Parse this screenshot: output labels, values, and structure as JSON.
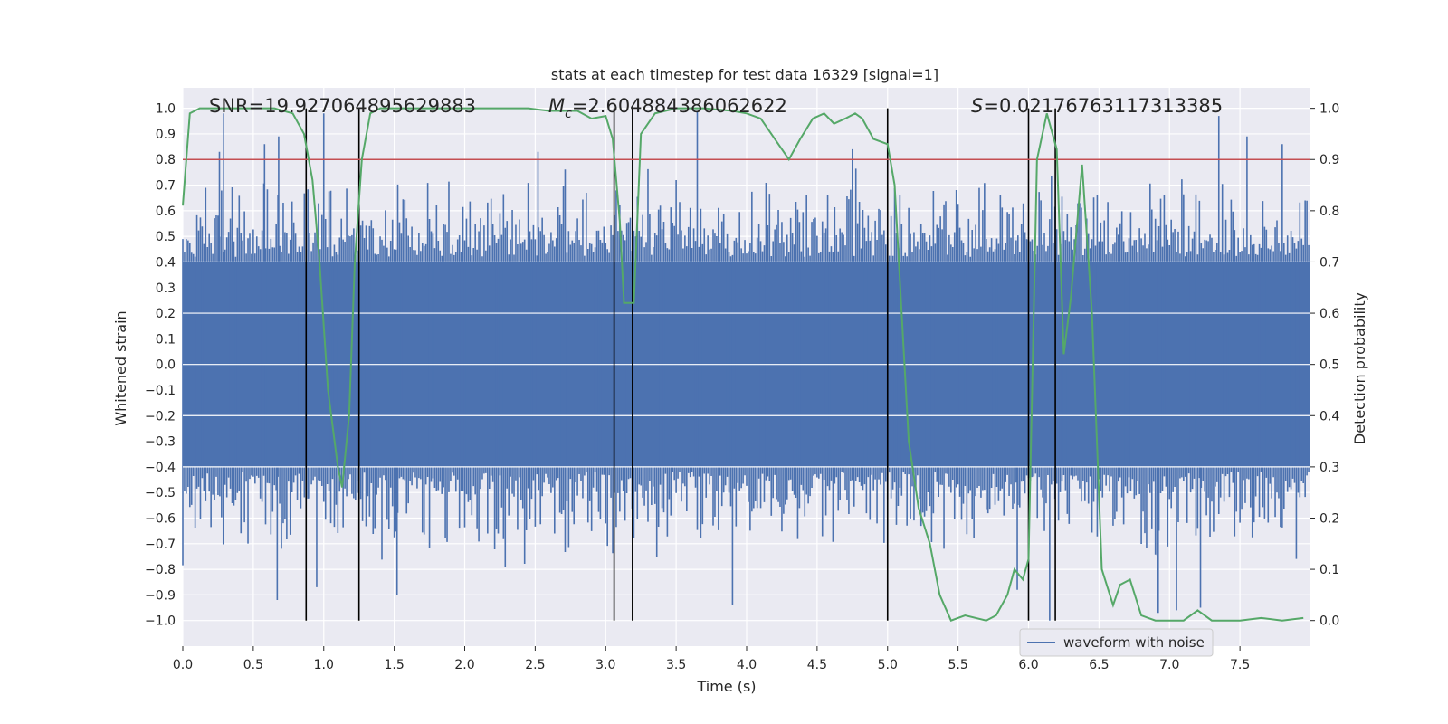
{
  "chart_data": {
    "type": "line",
    "title": "stats at each timestep for test data 16329 [signal=1]",
    "xlabel": "Time (s)",
    "ylabel_left": "Whitened strain",
    "ylabel_right": "Detection probability",
    "xlim": [
      0,
      8
    ],
    "ylim_left": [
      -1.1,
      1.08
    ],
    "ylim_right": [
      -0.05,
      1.04
    ],
    "x_ticks": [
      "0.0",
      "0.5",
      "1.0",
      "1.5",
      "2.0",
      "2.5",
      "3.0",
      "3.5",
      "4.0",
      "4.5",
      "5.0",
      "5.5",
      "6.0",
      "6.5",
      "7.0",
      "7.5"
    ],
    "y_left_ticks": [
      "1.0",
      "0.9",
      "0.8",
      "0.7",
      "0.6",
      "0.5",
      "0.4",
      "0.3",
      "0.2",
      "0.1",
      "0.0",
      "−0.1",
      "−0.2",
      "−0.3",
      "−0.4",
      "−0.5",
      "−0.6",
      "−0.7",
      "−0.8",
      "−0.9",
      "−1.0"
    ],
    "y_right_ticks": [
      "1.0",
      "0.9",
      "0.8",
      "0.7",
      "0.6",
      "0.5",
      "0.4",
      "0.3",
      "0.2",
      "0.1",
      "0.0"
    ],
    "annotations": {
      "snr": "SNR=19.927064895629883",
      "mc_symbol": "M",
      "mc_sub": "c",
      "mc_value": "=2.604884386062622",
      "s_symbol": "S",
      "s_value": "=0.021767631173133​85"
    },
    "legend": [
      {
        "label": "waveform with noise",
        "color": "#4c72b0"
      }
    ],
    "legend_position": "lower-right",
    "grid": true,
    "background": "#eaeaf2",
    "threshold_line": {
      "axis": "right",
      "y": 0.9,
      "color": "#c44e52"
    },
    "vertical_lines_x": [
      0.875,
      1.25,
      3.06,
      3.19,
      5.0,
      6.0,
      6.19
    ],
    "waveform": {
      "name": "waveform with noise",
      "color": "#4c72b0",
      "samples_per_second": 80,
      "core_amplitude": 0.42,
      "extreme_spikes": [
        {
          "x": 0.26,
          "y": 0.83
        },
        {
          "x": 0.29,
          "y": 0.98
        },
        {
          "x": 0.58,
          "y": 0.86
        },
        {
          "x": 0.68,
          "y": 0.89
        },
        {
          "x": 0.67,
          "y": -0.92
        },
        {
          "x": 0.95,
          "y": -0.87
        },
        {
          "x": 1.52,
          "y": -0.9
        },
        {
          "x": 2.52,
          "y": 0.83
        },
        {
          "x": 3.65,
          "y": 0.99
        },
        {
          "x": 3.9,
          "y": -0.94
        },
        {
          "x": 4.75,
          "y": 0.84
        },
        {
          "x": 5.92,
          "y": -0.88
        },
        {
          "x": 6.15,
          "y": -1.0
        },
        {
          "x": 6.92,
          "y": -0.97
        },
        {
          "x": 7.05,
          "y": -0.96
        },
        {
          "x": 7.35,
          "y": 0.97
        },
        {
          "x": 7.55,
          "y": 0.89
        },
        {
          "x": 7.22,
          "y": -0.95
        },
        {
          "x": 7.8,
          "y": 0.86
        },
        {
          "x": 1.0,
          "y": 0.98
        }
      ]
    },
    "probability_series": {
      "color": "#55a868",
      "x": [
        0.0,
        0.05,
        0.12,
        0.2,
        0.35,
        0.5,
        0.65,
        0.78,
        0.86,
        0.92,
        0.97,
        1.03,
        1.1,
        1.13,
        1.18,
        1.22,
        1.27,
        1.33,
        1.4,
        1.55,
        1.8,
        2.1,
        2.45,
        2.6,
        2.8,
        2.9,
        3.0,
        3.05,
        3.1,
        3.13,
        3.2,
        3.25,
        3.35,
        3.5,
        3.7,
        3.9,
        4.0,
        4.1,
        4.2,
        4.3,
        4.38,
        4.47,
        4.55,
        4.62,
        4.7,
        4.77,
        4.82,
        4.9,
        5.0,
        5.05,
        5.1,
        5.15,
        5.22,
        5.3,
        5.37,
        5.45,
        5.55,
        5.7,
        5.77,
        5.85,
        5.9,
        5.96,
        6.0,
        6.06,
        6.13,
        6.2,
        6.25,
        6.3,
        6.38,
        6.45,
        6.52,
        6.6,
        6.65,
        6.72,
        6.8,
        6.9,
        7.1,
        7.2,
        7.3,
        7.5,
        7.65,
        7.8,
        7.95
      ],
      "y": [
        0.81,
        0.99,
        1.0,
        1.0,
        1.0,
        1.0,
        1.0,
        0.99,
        0.95,
        0.86,
        0.7,
        0.45,
        0.3,
        0.26,
        0.4,
        0.7,
        0.9,
        0.99,
        1.0,
        1.0,
        1.0,
        1.0,
        1.0,
        0.995,
        0.995,
        0.98,
        0.985,
        0.94,
        0.78,
        0.62,
        0.62,
        0.95,
        0.99,
        1.0,
        1.0,
        0.995,
        0.99,
        0.98,
        0.94,
        0.9,
        0.94,
        0.98,
        0.99,
        0.97,
        0.98,
        0.99,
        0.98,
        0.94,
        0.93,
        0.85,
        0.6,
        0.35,
        0.22,
        0.15,
        0.05,
        0.0,
        0.01,
        0.0,
        0.01,
        0.05,
        0.1,
        0.08,
        0.12,
        0.9,
        0.99,
        0.92,
        0.52,
        0.63,
        0.89,
        0.6,
        0.1,
        0.03,
        0.07,
        0.08,
        0.01,
        0.0,
        0.0,
        0.02,
        0.0,
        0.0,
        0.005,
        0.0,
        0.005
      ]
    }
  }
}
